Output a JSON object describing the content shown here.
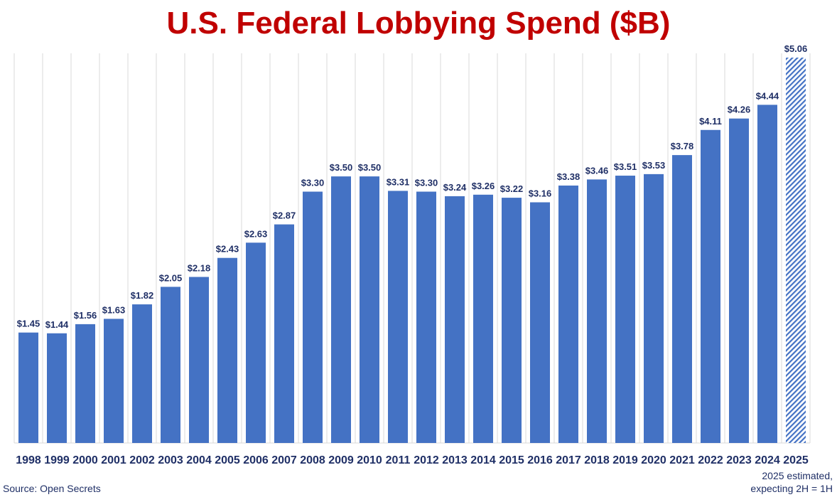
{
  "colors": {
    "title": "#c00000",
    "bar": "#4472c4",
    "label": "#1f2f66",
    "grid": "#d9d9d9"
  },
  "chart_data": {
    "type": "bar",
    "title": "U.S. Federal Lobbying Spend ($B)",
    "xlabel": "",
    "ylabel": "",
    "ylim": [
      0,
      5.12
    ],
    "grid": "vertical category separators",
    "categories": [
      "1998",
      "1999",
      "2000",
      "2001",
      "2002",
      "2003",
      "2004",
      "2005",
      "2006",
      "2007",
      "2008",
      "2009",
      "2010",
      "2011",
      "2012",
      "2013",
      "2014",
      "2015",
      "2016",
      "2017",
      "2018",
      "2019",
      "2020",
      "2021",
      "2022",
      "2023",
      "2024",
      "2025"
    ],
    "values": [
      1.45,
      1.44,
      1.56,
      1.63,
      1.82,
      2.05,
      2.18,
      2.43,
      2.63,
      2.87,
      3.3,
      3.5,
      3.5,
      3.31,
      3.3,
      3.24,
      3.26,
      3.22,
      3.16,
      3.38,
      3.46,
      3.51,
      3.53,
      3.78,
      4.11,
      4.26,
      4.44,
      5.06
    ],
    "data_labels": [
      "$1.45",
      "$1.44",
      "$1.56",
      "$1.63",
      "$1.82",
      "$2.05",
      "$2.18",
      "$2.43",
      "$2.63",
      "$2.87",
      "$3.30",
      "$3.50",
      "$3.50",
      "$3.31",
      "$3.30",
      "$3.24",
      "$3.26",
      "$3.22",
      "$3.16",
      "$3.38",
      "$3.46",
      "$3.51",
      "$3.53",
      "$3.78",
      "$4.11",
      "$4.26",
      "$4.44",
      "$5.06"
    ],
    "estimated": [
      false,
      false,
      false,
      false,
      false,
      false,
      false,
      false,
      false,
      false,
      false,
      false,
      false,
      false,
      false,
      false,
      false,
      false,
      false,
      false,
      false,
      false,
      false,
      false,
      false,
      false,
      false,
      true
    ]
  },
  "source": "Source: Open Secrets",
  "note_lines": [
    "2025 estimated,",
    "expecting 2H = 1H"
  ]
}
